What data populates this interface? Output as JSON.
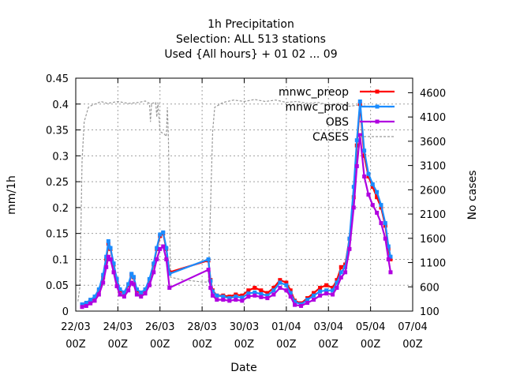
{
  "chart_data": {
    "type": "line",
    "title_lines": [
      "1h Precipitation",
      "Selection: ALL    513 stations",
      "Used {All hours} + 01 02 ... 09"
    ],
    "xlabel": "Date",
    "ylabel": "mm/1h",
    "y2label": "No cases",
    "x_ticks": [
      "22/03 00Z",
      "24/03 00Z",
      "26/03 00Z",
      "28/03 00Z",
      "30/03 00Z",
      "01/04 00Z",
      "03/04 00Z",
      "05/04 00Z",
      "07/04 00Z"
    ],
    "xlim_days": [
      0,
      16
    ],
    "ylim": [
      0,
      0.45
    ],
    "y_ticks": [
      "0",
      "0.05",
      "0.1",
      "0.15",
      "0.2",
      "0.25",
      "0.3",
      "0.35",
      "0.4",
      "0.45"
    ],
    "y2lim": [
      100,
      4900
    ],
    "y2_ticks": [
      "100",
      "600",
      "1100",
      "1600",
      "2100",
      "2600",
      "3100",
      "3600",
      "4100",
      "4600"
    ],
    "grid": true,
    "legend_position": "top-right",
    "colors": {
      "mnwc_preop": "#ff0000",
      "mnwc_prod": "#1a8cff",
      "OBS": "#b000e0",
      "CASES": "#999999"
    },
    "series": [
      {
        "name": "mnwc_preop",
        "axis": "y",
        "points": [
          [
            0.3,
            0.012
          ],
          [
            0.5,
            0.015
          ],
          [
            0.7,
            0.02
          ],
          [
            0.9,
            0.025
          ],
          [
            1.1,
            0.04
          ],
          [
            1.3,
            0.065
          ],
          [
            1.45,
            0.1
          ],
          [
            1.55,
            0.13
          ],
          [
            1.65,
            0.12
          ],
          [
            1.8,
            0.09
          ],
          [
            1.95,
            0.06
          ],
          [
            2.1,
            0.04
          ],
          [
            2.3,
            0.035
          ],
          [
            2.5,
            0.05
          ],
          [
            2.65,
            0.07
          ],
          [
            2.75,
            0.065
          ],
          [
            2.9,
            0.04
          ],
          [
            3.1,
            0.035
          ],
          [
            3.3,
            0.04
          ],
          [
            3.5,
            0.06
          ],
          [
            3.7,
            0.09
          ],
          [
            3.85,
            0.12
          ],
          [
            4.0,
            0.145
          ],
          [
            4.15,
            0.15
          ],
          [
            4.3,
            0.12
          ],
          [
            4.45,
            0.075
          ],
          [
            6.3,
            0.098
          ],
          [
            6.4,
            0.06
          ],
          [
            6.5,
            0.04
          ],
          [
            6.7,
            0.03
          ],
          [
            7.0,
            0.03
          ],
          [
            7.3,
            0.028
          ],
          [
            7.6,
            0.032
          ],
          [
            7.9,
            0.03
          ],
          [
            8.2,
            0.04
          ],
          [
            8.5,
            0.045
          ],
          [
            8.8,
            0.04
          ],
          [
            9.1,
            0.035
          ],
          [
            9.4,
            0.045
          ],
          [
            9.7,
            0.06
          ],
          [
            10.0,
            0.055
          ],
          [
            10.2,
            0.04
          ],
          [
            10.4,
            0.02
          ],
          [
            10.7,
            0.015
          ],
          [
            11.0,
            0.025
          ],
          [
            11.3,
            0.035
          ],
          [
            11.6,
            0.045
          ],
          [
            11.9,
            0.05
          ],
          [
            12.2,
            0.045
          ],
          [
            12.4,
            0.06
          ],
          [
            12.6,
            0.085
          ],
          [
            12.8,
            0.09
          ],
          [
            13.0,
            0.14
          ],
          [
            13.2,
            0.22
          ],
          [
            13.35,
            0.32
          ],
          [
            13.5,
            0.4
          ],
          [
            13.7,
            0.3
          ],
          [
            13.9,
            0.26
          ],
          [
            14.1,
            0.24
          ],
          [
            14.3,
            0.22
          ],
          [
            14.5,
            0.2
          ],
          [
            14.7,
            0.165
          ],
          [
            14.85,
            0.12
          ],
          [
            14.95,
            0.1
          ]
        ]
      },
      {
        "name": "mnwc_prod",
        "axis": "y",
        "points": [
          [
            0.3,
            0.013
          ],
          [
            0.5,
            0.016
          ],
          [
            0.7,
            0.022
          ],
          [
            0.9,
            0.028
          ],
          [
            1.1,
            0.042
          ],
          [
            1.3,
            0.07
          ],
          [
            1.45,
            0.105
          ],
          [
            1.55,
            0.135
          ],
          [
            1.65,
            0.122
          ],
          [
            1.8,
            0.092
          ],
          [
            1.95,
            0.062
          ],
          [
            2.1,
            0.042
          ],
          [
            2.3,
            0.036
          ],
          [
            2.5,
            0.052
          ],
          [
            2.65,
            0.072
          ],
          [
            2.75,
            0.066
          ],
          [
            2.9,
            0.042
          ],
          [
            3.1,
            0.036
          ],
          [
            3.3,
            0.042
          ],
          [
            3.5,
            0.062
          ],
          [
            3.7,
            0.092
          ],
          [
            3.85,
            0.122
          ],
          [
            4.0,
            0.148
          ],
          [
            4.15,
            0.152
          ],
          [
            4.3,
            0.122
          ],
          [
            4.45,
            0.072
          ],
          [
            6.3,
            0.1
          ],
          [
            6.4,
            0.058
          ],
          [
            6.5,
            0.038
          ],
          [
            6.7,
            0.03
          ],
          [
            7.0,
            0.028
          ],
          [
            7.3,
            0.025
          ],
          [
            7.6,
            0.028
          ],
          [
            7.9,
            0.026
          ],
          [
            8.2,
            0.034
          ],
          [
            8.5,
            0.036
          ],
          [
            8.8,
            0.033
          ],
          [
            9.1,
            0.03
          ],
          [
            9.4,
            0.04
          ],
          [
            9.7,
            0.055
          ],
          [
            10.0,
            0.05
          ],
          [
            10.2,
            0.035
          ],
          [
            10.4,
            0.018
          ],
          [
            10.7,
            0.013
          ],
          [
            11.0,
            0.022
          ],
          [
            11.3,
            0.03
          ],
          [
            11.6,
            0.038
          ],
          [
            11.9,
            0.04
          ],
          [
            12.2,
            0.04
          ],
          [
            12.4,
            0.055
          ],
          [
            12.6,
            0.075
          ],
          [
            12.8,
            0.085
          ],
          [
            13.0,
            0.14
          ],
          [
            13.2,
            0.24
          ],
          [
            13.35,
            0.33
          ],
          [
            13.5,
            0.405
          ],
          [
            13.7,
            0.31
          ],
          [
            13.9,
            0.265
          ],
          [
            14.1,
            0.245
          ],
          [
            14.3,
            0.23
          ],
          [
            14.5,
            0.205
          ],
          [
            14.7,
            0.17
          ],
          [
            14.85,
            0.125
          ],
          [
            14.95,
            0.105
          ]
        ]
      },
      {
        "name": "OBS",
        "axis": "y",
        "points": [
          [
            0.3,
            0.008
          ],
          [
            0.5,
            0.01
          ],
          [
            0.7,
            0.015
          ],
          [
            0.9,
            0.02
          ],
          [
            1.1,
            0.032
          ],
          [
            1.3,
            0.055
          ],
          [
            1.45,
            0.085
          ],
          [
            1.55,
            0.105
          ],
          [
            1.65,
            0.1
          ],
          [
            1.8,
            0.075
          ],
          [
            1.95,
            0.048
          ],
          [
            2.1,
            0.032
          ],
          [
            2.3,
            0.028
          ],
          [
            2.5,
            0.04
          ],
          [
            2.65,
            0.055
          ],
          [
            2.75,
            0.052
          ],
          [
            2.9,
            0.032
          ],
          [
            3.1,
            0.028
          ],
          [
            3.3,
            0.034
          ],
          [
            3.5,
            0.05
          ],
          [
            3.7,
            0.075
          ],
          [
            3.85,
            0.1
          ],
          [
            4.0,
            0.12
          ],
          [
            4.15,
            0.125
          ],
          [
            4.3,
            0.1
          ],
          [
            4.45,
            0.045
          ],
          [
            6.3,
            0.08
          ],
          [
            6.4,
            0.045
          ],
          [
            6.5,
            0.03
          ],
          [
            6.7,
            0.022
          ],
          [
            7.0,
            0.022
          ],
          [
            7.3,
            0.02
          ],
          [
            7.6,
            0.022
          ],
          [
            7.9,
            0.02
          ],
          [
            8.2,
            0.028
          ],
          [
            8.5,
            0.03
          ],
          [
            8.8,
            0.027
          ],
          [
            9.1,
            0.025
          ],
          [
            9.4,
            0.032
          ],
          [
            9.7,
            0.045
          ],
          [
            10.0,
            0.04
          ],
          [
            10.2,
            0.028
          ],
          [
            10.4,
            0.012
          ],
          [
            10.7,
            0.01
          ],
          [
            11.0,
            0.016
          ],
          [
            11.3,
            0.022
          ],
          [
            11.6,
            0.03
          ],
          [
            11.9,
            0.034
          ],
          [
            12.2,
            0.032
          ],
          [
            12.4,
            0.045
          ],
          [
            12.6,
            0.065
          ],
          [
            12.8,
            0.075
          ],
          [
            13.0,
            0.12
          ],
          [
            13.2,
            0.2
          ],
          [
            13.35,
            0.28
          ],
          [
            13.5,
            0.34
          ],
          [
            13.7,
            0.26
          ],
          [
            13.9,
            0.225
          ],
          [
            14.1,
            0.205
          ],
          [
            14.3,
            0.19
          ],
          [
            14.5,
            0.17
          ],
          [
            14.7,
            0.14
          ],
          [
            14.85,
            0.1
          ],
          [
            14.95,
            0.075
          ]
        ]
      },
      {
        "name": "CASES",
        "axis": "y2",
        "dashed": true,
        "points": [
          [
            0.1,
            300
          ],
          [
            0.2,
            600
          ],
          [
            0.3,
            3200
          ],
          [
            0.4,
            4000
          ],
          [
            0.6,
            4300
          ],
          [
            0.8,
            4350
          ],
          [
            1.0,
            4380
          ],
          [
            1.2,
            4420
          ],
          [
            1.5,
            4380
          ],
          [
            2.0,
            4420
          ],
          [
            2.5,
            4380
          ],
          [
            3.0,
            4400
          ],
          [
            3.3,
            4430
          ],
          [
            3.5,
            4380
          ],
          [
            3.55,
            4000
          ],
          [
            3.6,
            4380
          ],
          [
            3.8,
            4400
          ],
          [
            3.85,
            4100
          ],
          [
            3.9,
            4400
          ],
          [
            4.0,
            3800
          ],
          [
            4.2,
            3750
          ],
          [
            4.3,
            3700
          ],
          [
            4.35,
            4300
          ],
          [
            4.4,
            3700
          ],
          [
            4.5,
            800
          ],
          [
            5.0,
            750
          ],
          [
            6.0,
            700
          ],
          [
            6.3,
            700
          ],
          [
            6.5,
            3800
          ],
          [
            6.6,
            4300
          ],
          [
            7.0,
            4400
          ],
          [
            7.5,
            4450
          ],
          [
            8.0,
            4420
          ],
          [
            8.5,
            4460
          ],
          [
            9.0,
            4420
          ],
          [
            9.5,
            4450
          ],
          [
            10.0,
            4400
          ],
          [
            10.5,
            4420
          ],
          [
            11.0,
            4380
          ],
          [
            11.5,
            4400
          ],
          [
            12.0,
            4350
          ],
          [
            12.5,
            4380
          ],
          [
            13.0,
            4320
          ],
          [
            13.5,
            4350
          ],
          [
            14.0,
            4300
          ],
          [
            14.5,
            4320
          ],
          [
            15.0,
            4300
          ]
        ]
      }
    ]
  }
}
